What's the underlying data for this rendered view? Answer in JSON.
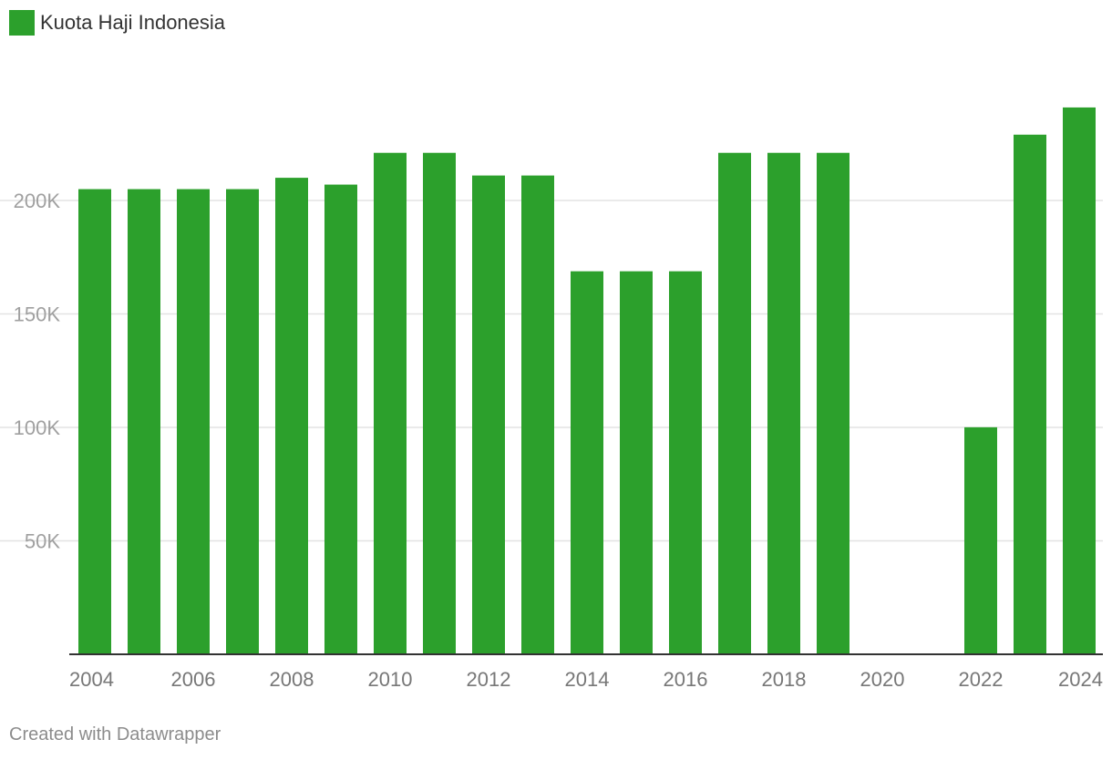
{
  "legend": {
    "label": "Kuota Haji Indonesia"
  },
  "credit": "Created with Datawrapper",
  "colors": {
    "bar": "#2ca02c",
    "grid": "#e3e3e3",
    "baseline": "#333333"
  },
  "chart_data": {
    "type": "bar",
    "title": "",
    "xlabel": "",
    "ylabel": "",
    "ylim": [
      0,
      240000
    ],
    "grid": true,
    "legend_position": "top-left",
    "categories": [
      "2004",
      "2005",
      "2006",
      "2007",
      "2008",
      "2009",
      "2010",
      "2011",
      "2012",
      "2013",
      "2014",
      "2015",
      "2016",
      "2017",
      "2018",
      "2019",
      "2020",
      "2021",
      "2022",
      "2023",
      "2024"
    ],
    "x_tick_labels": [
      "2004",
      "2006",
      "2008",
      "2010",
      "2012",
      "2014",
      "2016",
      "2018",
      "2020",
      "2022",
      "2024"
    ],
    "y_ticks": [
      50000,
      100000,
      150000,
      200000
    ],
    "y_tick_labels": [
      "50K",
      "100K",
      "150K",
      "200K"
    ],
    "series": [
      {
        "name": "Kuota Haji Indonesia",
        "values": [
          205000,
          205000,
          205000,
          205000,
          210000,
          207000,
          221000,
          221000,
          211000,
          211000,
          168800,
          168800,
          168800,
          221000,
          221000,
          221000,
          0,
          0,
          100051,
          229000,
          241000
        ]
      }
    ]
  }
}
